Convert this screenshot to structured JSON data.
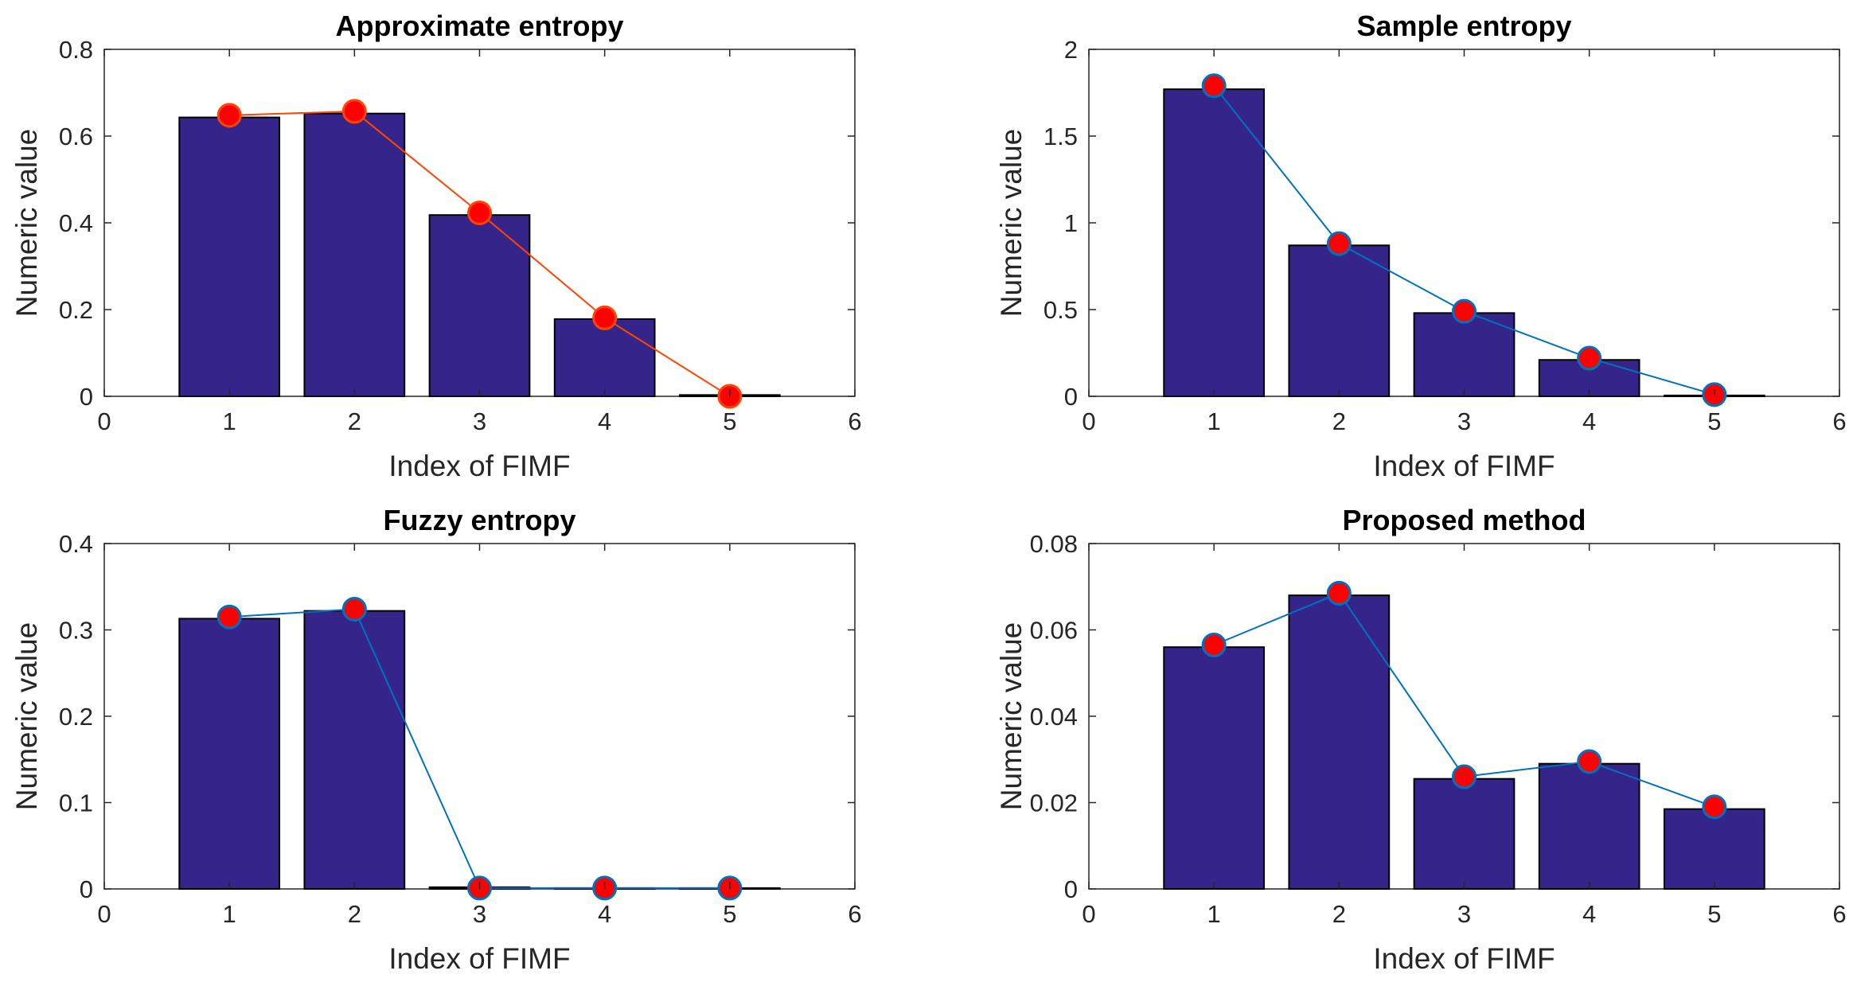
{
  "chart_data": [
    {
      "type": "bar",
      "title": "Approximate entropy",
      "xlabel": "Index of FIMF",
      "ylabel": "Numeric value",
      "x": [
        1,
        2,
        3,
        4,
        5
      ],
      "values": [
        0.643,
        0.652,
        0.418,
        0.178,
        0.003
      ],
      "line_values": [
        0.648,
        0.657,
        0.423,
        0.181,
        0.0
      ],
      "xlim": [
        0,
        6
      ],
      "ylim": [
        0,
        0.8
      ],
      "xticks": [
        0,
        1,
        2,
        3,
        4,
        5,
        6
      ],
      "yticks": [
        0,
        0.2,
        0.4,
        0.6,
        0.8
      ],
      "ytick_labels": [
        "0",
        "0.2",
        "0.4",
        "0.6",
        "0.8"
      ],
      "line_color": "#ff4500",
      "marker_edge": "#ff4500"
    },
    {
      "type": "bar",
      "title": "Sample entropy",
      "xlabel": "Index of FIMF",
      "ylabel": "Numeric value",
      "x": [
        1,
        2,
        3,
        4,
        5
      ],
      "values": [
        1.77,
        0.87,
        0.48,
        0.21,
        0.005
      ],
      "line_values": [
        1.79,
        0.88,
        0.49,
        0.22,
        0.01
      ],
      "xlim": [
        0,
        6
      ],
      "ylim": [
        0,
        2
      ],
      "xticks": [
        0,
        1,
        2,
        3,
        4,
        5,
        6
      ],
      "yticks": [
        0,
        0.5,
        1,
        1.5,
        2
      ],
      "ytick_labels": [
        "0",
        "0.5",
        "1",
        "1.5",
        "2"
      ],
      "line_color": "#0072bd",
      "marker_edge": "#0072bd"
    },
    {
      "type": "bar",
      "title": "Fuzzy entropy",
      "xlabel": "Index of FIMF",
      "ylabel": "Numeric value",
      "x": [
        1,
        2,
        3,
        4,
        5
      ],
      "values": [
        0.313,
        0.322,
        0.002,
        0.001,
        0.001
      ],
      "line_values": [
        0.315,
        0.324,
        0.001,
        0.001,
        0.001
      ],
      "xlim": [
        0,
        6
      ],
      "ylim": [
        0,
        0.4
      ],
      "xticks": [
        0,
        1,
        2,
        3,
        4,
        5,
        6
      ],
      "yticks": [
        0,
        0.1,
        0.2,
        0.3,
        0.4
      ],
      "ytick_labels": [
        "0",
        "0.1",
        "0.2",
        "0.3",
        "0.4"
      ],
      "line_color": "#0072bd",
      "marker_edge": "#0072bd"
    },
    {
      "type": "bar",
      "title": "Proposed method",
      "xlabel": "Index of FIMF",
      "ylabel": "Numeric value",
      "x": [
        1,
        2,
        3,
        4,
        5
      ],
      "values": [
        0.056,
        0.068,
        0.0255,
        0.029,
        0.0185
      ],
      "line_values": [
        0.0565,
        0.0685,
        0.026,
        0.0295,
        0.019
      ],
      "xlim": [
        0,
        6
      ],
      "ylim": [
        0,
        0.08
      ],
      "xticks": [
        0,
        1,
        2,
        3,
        4,
        5,
        6
      ],
      "yticks": [
        0,
        0.02,
        0.04,
        0.06,
        0.08
      ],
      "ytick_labels": [
        "0",
        "0.02",
        "0.04",
        "0.06",
        "0.08"
      ],
      "line_color": "#0072bd",
      "marker_edge": "#0072bd"
    }
  ],
  "style": {
    "bar_fill": "#35258b",
    "bar_edge": "#000000",
    "marker_fill": "#ff0000",
    "axis_color": "#262626"
  }
}
